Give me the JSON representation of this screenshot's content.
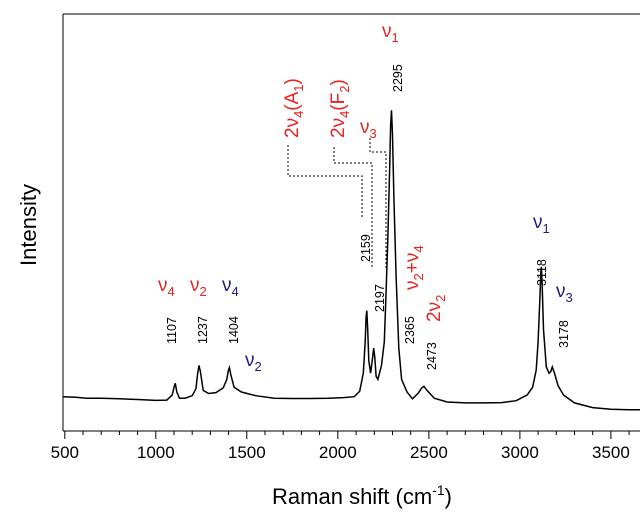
{
  "chart_data": {
    "type": "line",
    "title": "",
    "xlabel": "Raman shift (cm",
    "xlabel_sup": "-1",
    "xlabel_end": ")",
    "ylabel": "Intensity",
    "xlim": [
      490,
      3660
    ],
    "ylim": [
      0,
      100
    ],
    "xticks": [
      500,
      1000,
      1500,
      2000,
      2500,
      3000,
      3500
    ],
    "yticks_shown": false,
    "grid": false,
    "colors": {
      "line": "#000000",
      "mode_red": "#e8231f",
      "mode_blue": "#1a1a7a"
    },
    "series": [
      {
        "x": [
          490,
          560,
          620,
          700,
          800,
          900,
          1000,
          1060,
          1090,
          1100,
          1107,
          1115,
          1130,
          1160,
          1200,
          1220,
          1230,
          1237,
          1245,
          1260,
          1290,
          1330,
          1370,
          1390,
          1398,
          1404,
          1412,
          1430,
          1470,
          1550,
          1650,
          1750,
          1850,
          1950,
          2030,
          2090,
          2120,
          2140,
          2150,
          2155,
          2159,
          2164,
          2170,
          2180,
          2190,
          2197,
          2203,
          2210,
          2220,
          2240,
          2255,
          2265,
          2275,
          2285,
          2290,
          2295,
          2300,
          2308,
          2320,
          2335,
          2350,
          2365,
          2380,
          2410,
          2440,
          2460,
          2473,
          2490,
          2530,
          2600,
          2700,
          2800,
          2900,
          2980,
          3040,
          3070,
          3090,
          3100,
          3110,
          3115,
          3118,
          3122,
          3130,
          3145,
          3160,
          3170,
          3178,
          3190,
          3210,
          3240,
          3300,
          3400,
          3500,
          3600,
          3660
        ],
        "y": [
          6.5,
          6.3,
          6.0,
          6.0,
          5.8,
          5.6,
          5.3,
          5.4,
          7.0,
          9.5,
          10.8,
          8.0,
          6.0,
          6.0,
          6.8,
          9.0,
          14.0,
          16.5,
          14.5,
          8.5,
          7.5,
          7.8,
          9.3,
          12.0,
          14.8,
          15.8,
          13.5,
          9.5,
          8.0,
          6.8,
          6.0,
          5.9,
          5.9,
          6.0,
          6.2,
          6.5,
          8.2,
          14.0,
          24.0,
          32.0,
          34.0,
          28.0,
          18.0,
          14.0,
          18.5,
          22.0,
          19.0,
          13.0,
          12.0,
          16.5,
          24.0,
          40.0,
          58.0,
          80.0,
          93.0,
          98.0,
          90.0,
          70.0,
          45.0,
          22.0,
          12.0,
          10.0,
          8.0,
          5.8,
          7.5,
          9.2,
          9.8,
          8.5,
          6.0,
          4.8,
          4.5,
          4.5,
          4.6,
          5.2,
          7.0,
          9.5,
          15.0,
          24.0,
          38.0,
          46.0,
          48.0,
          43.0,
          28.0,
          16.0,
          14.0,
          14.5,
          16.0,
          14.0,
          10.0,
          7.0,
          4.5,
          3.0,
          2.5,
          2.3,
          2.3
        ]
      }
    ],
    "annotations": {
      "modes": [
        {
          "text": "ν",
          "sub": "4",
          "x": 1107,
          "color": "red"
        },
        {
          "text": "ν",
          "sub": "2",
          "x": 1237,
          "color": "red"
        },
        {
          "text": "ν",
          "sub": "4",
          "x": 1404,
          "color": "blue"
        },
        {
          "text": "ν",
          "sub": "2",
          "x": 1530,
          "color": "blue"
        },
        {
          "text": "ν",
          "sub": "1",
          "x": 2295,
          "color": "red"
        },
        {
          "text": "ν",
          "sub": "1",
          "x": 3118,
          "color": "blue"
        },
        {
          "text": "ν",
          "sub": "3",
          "x": 3178,
          "color": "blue"
        }
      ],
      "peak_labels": [
        "1107",
        "1237",
        "1404",
        "2159",
        "2197",
        "2295",
        "2365",
        "2473",
        "3118",
        "3178"
      ],
      "overtone_labels": {
        "a1": {
          "pre": "2ν",
          "sub": "4",
          "mid": "(A",
          "sub2": "1",
          "post": ")"
        },
        "f2": {
          "pre": "2ν",
          "sub": "4",
          "mid": "(F",
          "sub2": "2",
          "post": ")"
        },
        "nu3": {
          "pre": "ν",
          "sub": "3"
        },
        "comb": {
          "pre": "ν",
          "sub": "2",
          "mid": "+ν",
          "sub2": "4"
        },
        "twonu2": {
          "pre": "2ν",
          "sub": "2"
        }
      }
    }
  }
}
